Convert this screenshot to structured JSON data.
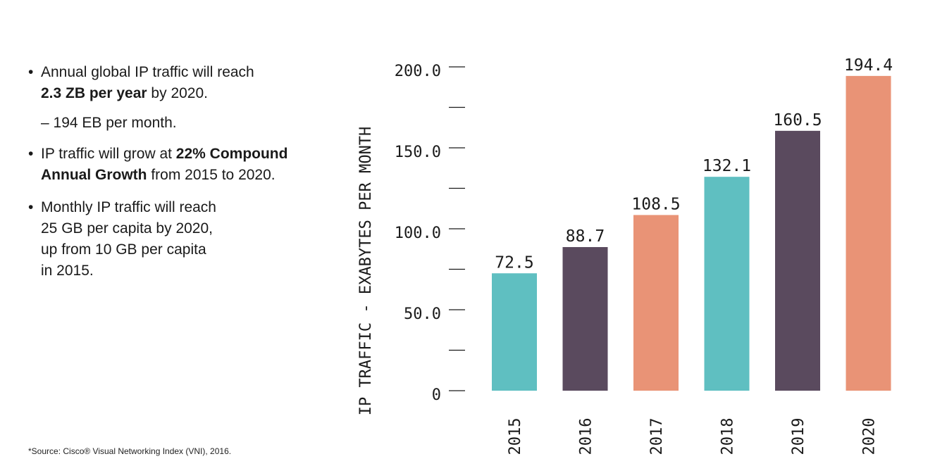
{
  "bullets": [
    {
      "pre": "Annual global IP traffic will reach",
      "bold": "2.3 ZB per year",
      "post": " by 2020."
    },
    {
      "sub": "– 194 EB per month."
    },
    {
      "pre": "IP traffic will grow at ",
      "bold": "22% Compound Annual Growth",
      "post": " from 2015 to 2020."
    },
    {
      "lines": [
        "Monthly IP traffic will reach",
        "25 GB per capita by 2020,",
        "up from 10 GB per capita",
        "in 2015."
      ]
    }
  ],
  "source": "*Source: Cisco® Visual Networking Index (VNI), 2016.",
  "chart_data": {
    "type": "bar",
    "categories": [
      "2015",
      "2016",
      "2017",
      "2018",
      "2019",
      "2020"
    ],
    "values": [
      72.5,
      88.7,
      108.5,
      132.1,
      160.5,
      194.4
    ],
    "value_labels": [
      "72.5",
      "88.7",
      "108.5",
      "132.1",
      "160.5",
      "194.4"
    ],
    "colors": [
      "#5fbfc1",
      "#5a4a5e",
      "#e99376",
      "#5fbfc1",
      "#5a4a5e",
      "#e99376"
    ],
    "ylabel": "IP TRAFFIC - EXABYTES PER MONTH",
    "ylim": [
      0,
      200
    ],
    "yticks": [
      0,
      50,
      100,
      150,
      200
    ],
    "ytick_labels": [
      "0",
      "50.0",
      "100.0",
      "150.0",
      "200.0"
    ],
    "minor_ticks": [
      25,
      75,
      125,
      175
    ],
    "grid": false
  }
}
